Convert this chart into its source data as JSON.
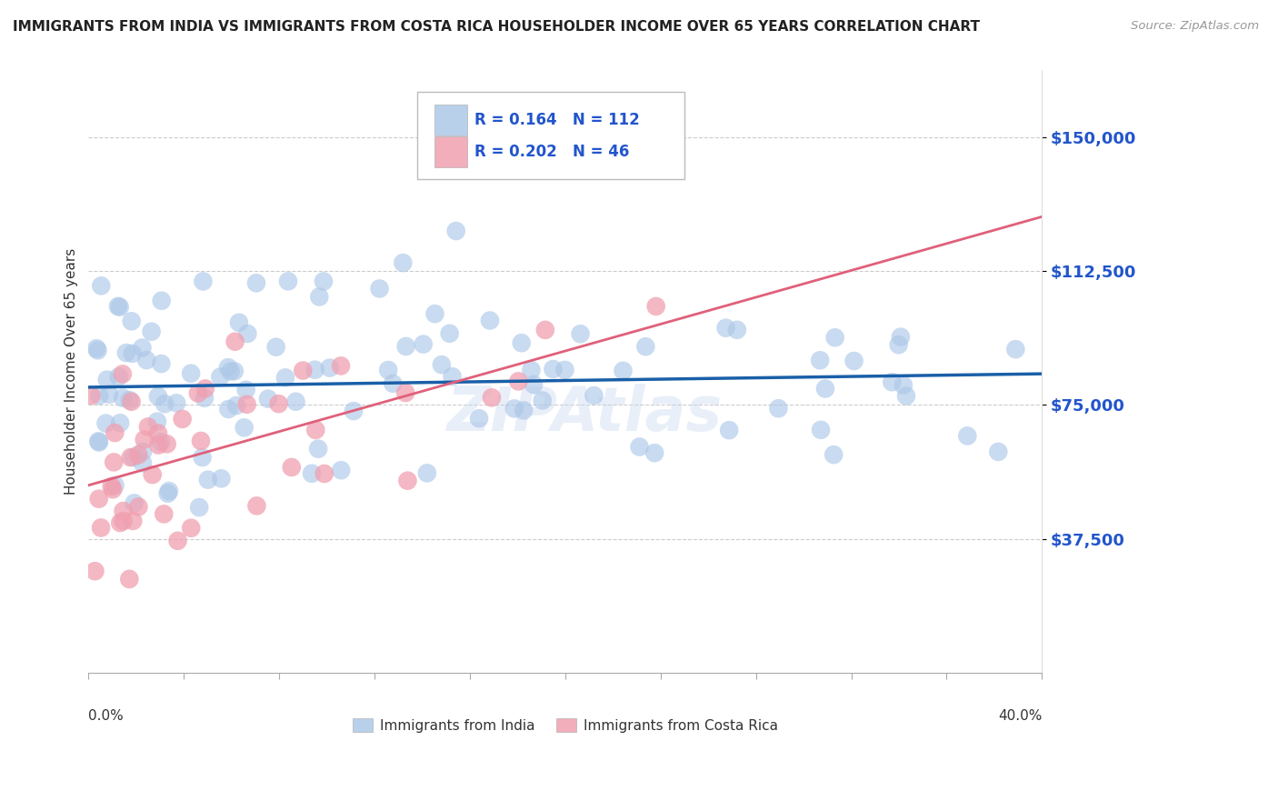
{
  "title": "IMMIGRANTS FROM INDIA VS IMMIGRANTS FROM COSTA RICA HOUSEHOLDER INCOME OVER 65 YEARS CORRELATION CHART",
  "source": "Source: ZipAtlas.com",
  "ylabel": "Householder Income Over 65 years",
  "xmin": 0.0,
  "xmax": 40.0,
  "ymin": 0,
  "ymax": 168750,
  "yticks": [
    37500,
    75000,
    112500,
    150000
  ],
  "ytick_labels": [
    "$37,500",
    "$75,000",
    "$112,500",
    "$150,000"
  ],
  "india_color": "#adc8e8",
  "costa_rica_color": "#f0a0b0",
  "india_line_color": "#1a5fa8",
  "costa_rica_line_color": "#e0607a",
  "india_R": 0.164,
  "india_N": 112,
  "costa_rica_R": 0.202,
  "costa_rica_N": 46,
  "background_color": "#ffffff",
  "grid_color": "#cccccc",
  "legend_text_color": "#2255cc",
  "ytick_color": "#2255cc",
  "watermark": "ZIPAtlas"
}
